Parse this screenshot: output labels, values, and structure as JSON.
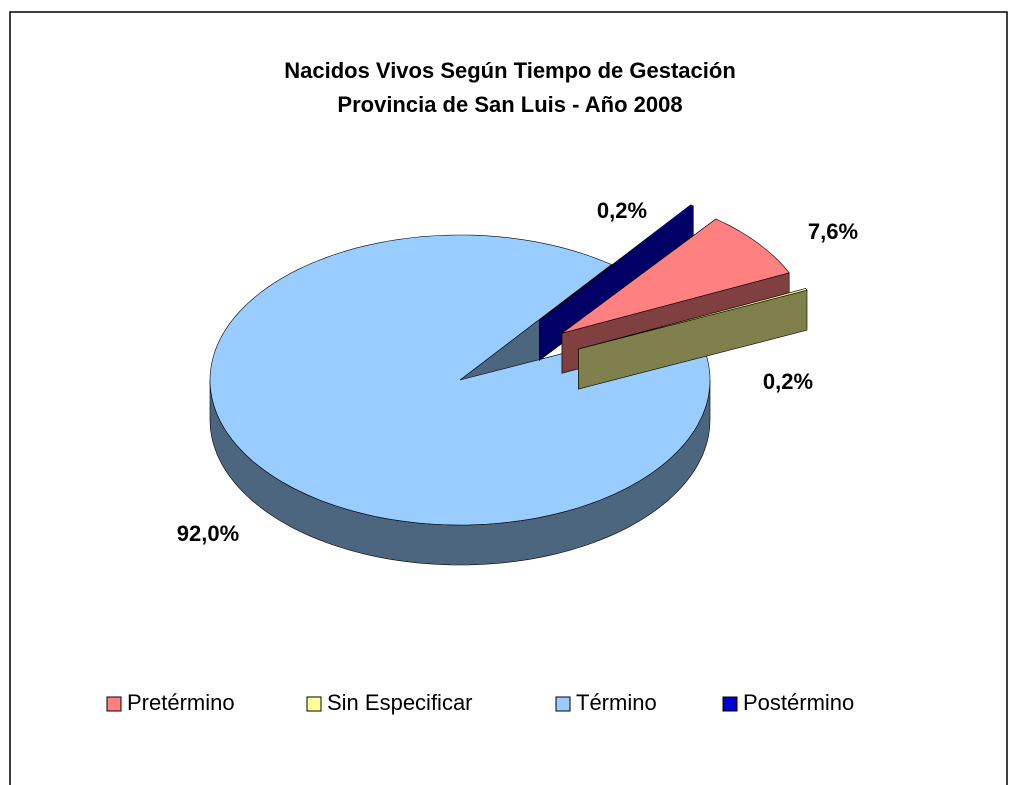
{
  "chart_data": {
    "type": "pie3d",
    "title": "Nacidos Vivos Según Tiempo de Gestación",
    "subtitle": "Provincia de San Luis - Año 2008",
    "categories": [
      "Pretérmino",
      "Sin Especificar",
      "Término",
      "Postérmino"
    ],
    "values": [
      7.6,
      0.2,
      92.0,
      0.2
    ],
    "value_labels": [
      "7,6%",
      "0,2%",
      "92,0%",
      "0,2%"
    ],
    "colors": [
      "#ff8080",
      "#ffff99",
      "#99ccff",
      "#0000cc"
    ],
    "legend": "bottom"
  }
}
